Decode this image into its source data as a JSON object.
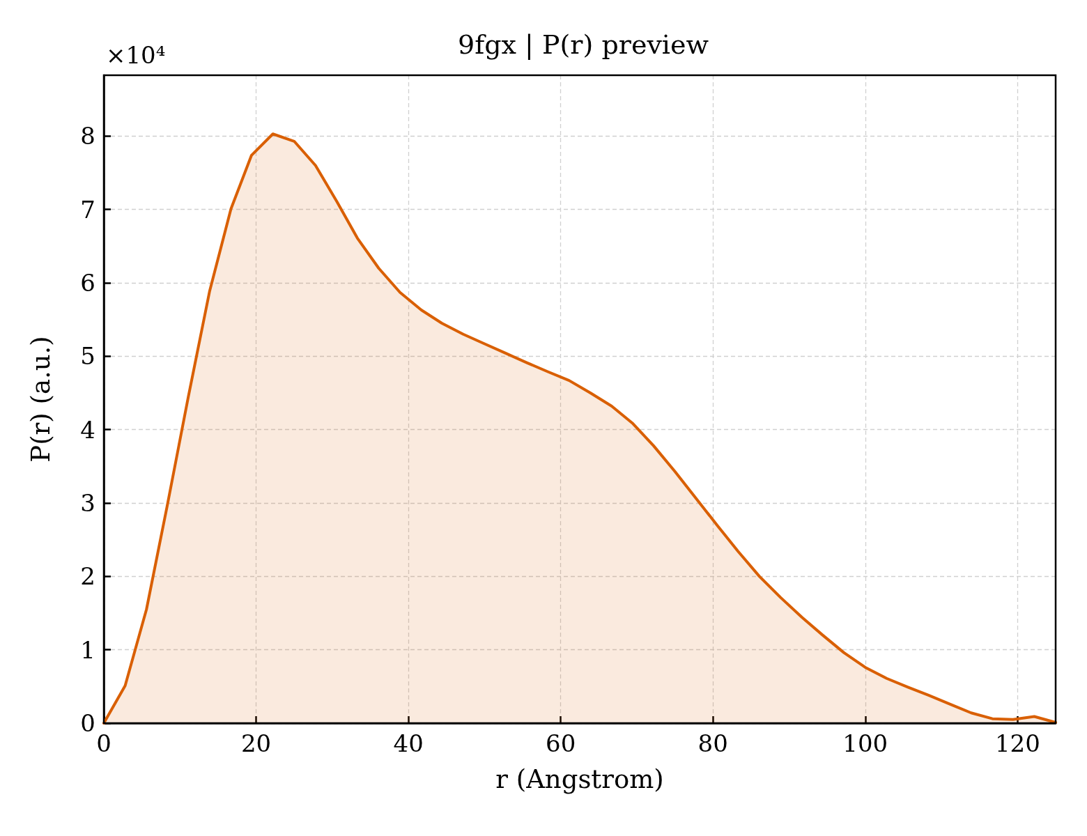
{
  "chart_data": {
    "type": "area",
    "title": "9fgx | P(r) preview",
    "xlabel": "r (Angstrom)",
    "ylabel": "P(r) (a.u.)",
    "annotations": [
      "×10⁴"
    ],
    "x": [
      0,
      2.8,
      5.6,
      8.3,
      11.1,
      13.9,
      16.7,
      19.4,
      22.2,
      25,
      27.8,
      30.6,
      33.3,
      36.1,
      38.9,
      41.7,
      44.4,
      47.2,
      50,
      52.8,
      55.6,
      58.3,
      61.1,
      63.9,
      66.7,
      69.4,
      72.2,
      75,
      77.8,
      80.6,
      83.3,
      86.1,
      88.9,
      91.7,
      94.4,
      97.2,
      100,
      102.8,
      105.6,
      108.3,
      111.1,
      113.9,
      116.7,
      119.4,
      122.2,
      125
    ],
    "values": [
      0,
      0.51,
      1.55,
      2.95,
      4.45,
      5.89,
      7.01,
      7.74,
      8.03,
      7.93,
      7.6,
      7.11,
      6.61,
      6.2,
      5.87,
      5.63,
      5.45,
      5.3,
      5.17,
      5.04,
      4.91,
      4.79,
      4.67,
      4.5,
      4.32,
      4.09,
      3.78,
      3.43,
      3.06,
      2.69,
      2.34,
      2.0,
      1.71,
      1.44,
      1.2,
      0.96,
      0.76,
      0.61,
      0.49,
      0.38,
      0.26,
      0.14,
      0.06,
      0.05,
      0.09,
      0.01
    ],
    "color": "#d95f02",
    "xlim": [
      0,
      125
    ],
    "ylim": [
      0,
      8.83
    ],
    "xticks": [
      0,
      20,
      40,
      60,
      80,
      100,
      120
    ],
    "yticks": [
      0,
      1,
      2,
      3,
      4,
      5,
      6,
      7,
      8
    ],
    "grid": true
  }
}
